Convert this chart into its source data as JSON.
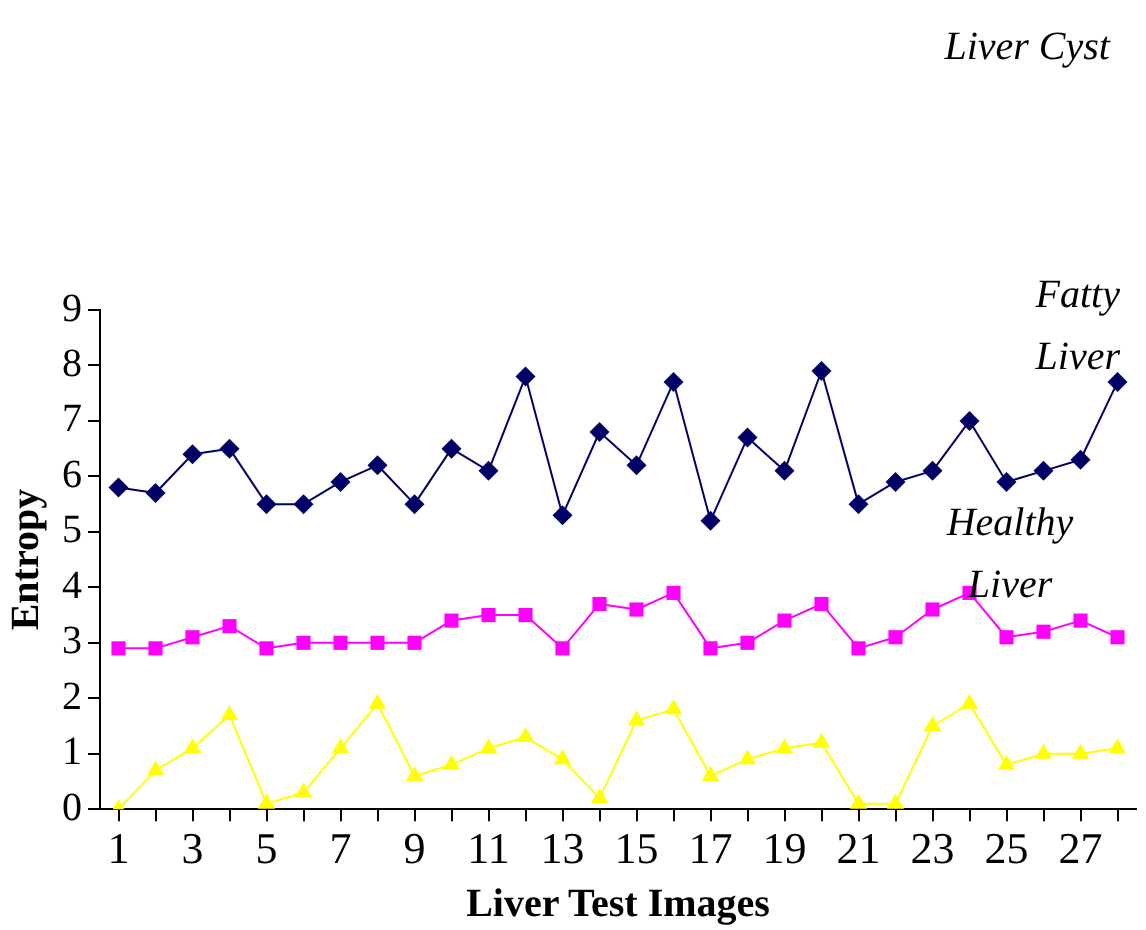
{
  "chart_data": {
    "type": "line",
    "xlabel": "Liver Test Images",
    "ylabel": "Entropy",
    "x": [
      1,
      2,
      3,
      4,
      5,
      6,
      7,
      8,
      9,
      10,
      11,
      12,
      13,
      14,
      15,
      16,
      17,
      18,
      19,
      20,
      21,
      22,
      23,
      24,
      25,
      26,
      27,
      28
    ],
    "xlim": [
      0.5,
      28.5
    ],
    "xticks": [
      1,
      {
        "value": 2,
        "label": null
      },
      3,
      {
        "value": 4,
        "label": null
      },
      5,
      {
        "value": 6,
        "label": null
      },
      7,
      {
        "value": 8,
        "label": null
      },
      9,
      {
        "value": 10,
        "label": null
      },
      11,
      {
        "value": 12,
        "label": null
      },
      13,
      {
        "value": 14,
        "label": null
      },
      15,
      {
        "value": 16,
        "label": null
      },
      17,
      {
        "value": 18,
        "label": null
      },
      19,
      {
        "value": 20,
        "label": null
      },
      21,
      {
        "value": 22,
        "label": null
      },
      23,
      {
        "value": 24,
        "label": null
      },
      25,
      {
        "value": 26,
        "label": null
      },
      27,
      {
        "value": 28,
        "label": null
      }
    ],
    "series": [
      {
        "color": "#000066",
        "marker": "diamond",
        "values": [
          5.8,
          5.7,
          6.4,
          6.5,
          5.5,
          5.5,
          5.9,
          6.2,
          5.5,
          6.5,
          6.1,
          7.8,
          5.3,
          6.8,
          6.2,
          7.7,
          5.2,
          6.7,
          6.1,
          7.9,
          5.5,
          5.9,
          6.1,
          7.0,
          5.9,
          6.1,
          6.3,
          7.7
        ]
      },
      {
        "color": "#ff00ff",
        "marker": "square",
        "values": [
          2.9,
          2.9,
          3.1,
          3.3,
          2.9,
          3.0,
          3.0,
          3.0,
          3.0,
          3.4,
          3.5,
          3.5,
          2.9,
          3.7,
          3.6,
          3.9,
          2.9,
          3.0,
          3.4,
          3.7,
          2.9,
          3.1,
          3.6,
          3.9,
          3.1,
          3.2,
          3.4,
          3.1
        ]
      },
      {
        "color": "#ffff00",
        "marker": "triangle",
        "values": [
          0.0,
          0.7,
          1.1,
          1.7,
          0.1,
          0.3,
          1.1,
          1.9,
          0.6,
          0.8,
          1.1,
          1.3,
          0.9,
          0.2,
          1.6,
          1.8,
          0.6,
          0.9,
          1.1,
          1.2,
          0.1,
          0.1,
          1.5,
          1.9,
          0.8,
          1.0,
          1.0,
          1.1
        ]
      }
    ],
    "ylim": [
      0,
      9
    ],
    "yticks": [
      0,
      1,
      2,
      3,
      4,
      5,
      6,
      7,
      8,
      9
    ],
    "grid": false,
    "legend": false,
    "annotations": [
      "Liver Cyst",
      "Fatty Liver",
      "Healthy Liver"
    ]
  }
}
